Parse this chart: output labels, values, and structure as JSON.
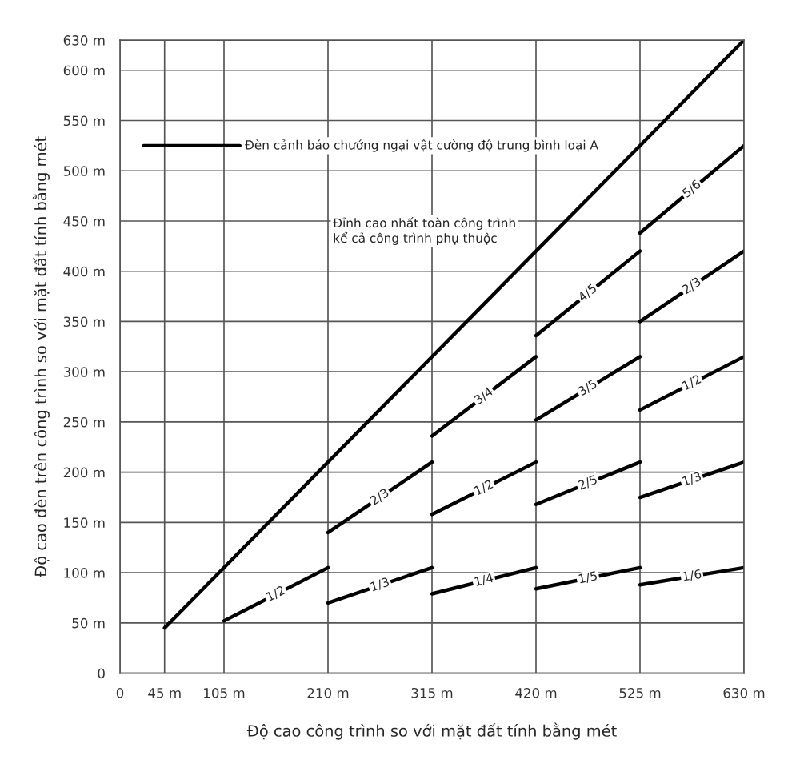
{
  "chart_data": {
    "type": "line",
    "xlabel": "Độ cao công trình so với mặt đất tính bằng mét",
    "ylabel": "Độ cao đèn trên công trình so với mặt đất tính bằng mét",
    "annotations": [
      "Đèn cảnh báo chướng ngại vật cường độ trung bình loại A",
      "Đỉnh cao nhất toàn công trình\nkể cả công trình phụ thuộc"
    ],
    "xlim": [
      0,
      630
    ],
    "ylim": [
      0,
      630
    ],
    "xticks": [
      0,
      {
        "value": 45,
        "label": "45 m"
      },
      {
        "value": 105,
        "label": "105 m"
      },
      {
        "value": 210,
        "label": "210 m"
      },
      {
        "value": 315,
        "label": "315 m"
      },
      {
        "value": 420,
        "label": "420 m"
      },
      {
        "value": 525,
        "label": "525 m"
      },
      {
        "value": 630,
        "label": "630 m"
      }
    ],
    "yticks": [
      0,
      {
        "value": 50,
        "label": "50 m"
      },
      {
        "value": 100,
        "label": "100 m"
      },
      {
        "value": 150,
        "label": "150 m"
      },
      {
        "value": 200,
        "label": "200 m"
      },
      {
        "value": 250,
        "label": "250 m"
      },
      {
        "value": 300,
        "label": "300 m"
      },
      {
        "value": 350,
        "label": "350 m"
      },
      {
        "value": 400,
        "label": "400 m"
      },
      {
        "value": 450,
        "label": "450 m"
      },
      {
        "value": 500,
        "label": "500 m"
      },
      {
        "value": 550,
        "label": "550 m"
      },
      {
        "value": 600,
        "label": "600 m"
      },
      {
        "value": 630,
        "label": "630 m"
      }
    ],
    "grid": true,
    "line_style": "solid",
    "marker": "none",
    "series": [
      {
        "color": "#000000",
        "x": [
          45,
          630
        ],
        "values": [
          45,
          630
        ]
      },
      {
        "name": "1/2",
        "color": "#000000",
        "x": [
          105,
          210
        ],
        "values": [
          52,
          105
        ]
      },
      {
        "name": "2/3",
        "color": "#000000",
        "x": [
          210,
          315
        ],
        "values": [
          140,
          210
        ]
      },
      {
        "name": "1/3",
        "color": "#000000",
        "x": [
          210,
          315
        ],
        "values": [
          70,
          105
        ]
      },
      {
        "name": "3/4",
        "color": "#000000",
        "x": [
          315,
          420
        ],
        "values": [
          236,
          315
        ]
      },
      {
        "name": "1/2",
        "color": "#000000",
        "x": [
          315,
          420
        ],
        "values": [
          158,
          210
        ]
      },
      {
        "name": "1/4",
        "color": "#000000",
        "x": [
          315,
          420
        ],
        "values": [
          79,
          105
        ]
      },
      {
        "name": "4/5",
        "color": "#000000",
        "x": [
          420,
          525
        ],
        "values": [
          336,
          420
        ]
      },
      {
        "name": "3/5",
        "color": "#000000",
        "x": [
          420,
          525
        ],
        "values": [
          252,
          315
        ]
      },
      {
        "name": "2/5",
        "color": "#000000",
        "x": [
          420,
          525
        ],
        "values": [
          168,
          210
        ]
      },
      {
        "name": "1/5",
        "color": "#000000",
        "x": [
          420,
          525
        ],
        "values": [
          84,
          105
        ]
      },
      {
        "name": "5/6",
        "color": "#000000",
        "x": [
          525,
          630
        ],
        "values": [
          438,
          525
        ]
      },
      {
        "name": "2/3",
        "color": "#000000",
        "x": [
          525,
          630
        ],
        "values": [
          350,
          420
        ]
      },
      {
        "name": "1/2",
        "color": "#000000",
        "x": [
          525,
          630
        ],
        "values": [
          262,
          315
        ]
      },
      {
        "name": "1/3",
        "color": "#000000",
        "x": [
          525,
          630
        ],
        "values": [
          175,
          210
        ]
      },
      {
        "name": "1/6",
        "color": "#000000",
        "x": [
          525,
          630
        ],
        "values": [
          88,
          105
        ]
      }
    ]
  }
}
